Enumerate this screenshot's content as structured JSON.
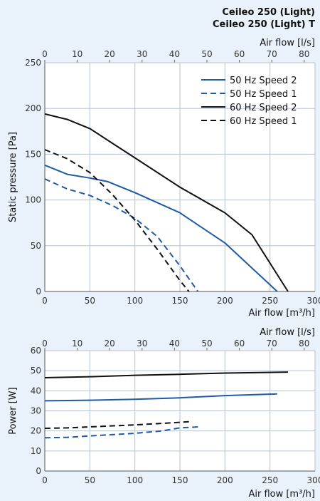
{
  "titles": [
    "Ceileo 250 (Light)",
    "Ceileo 250 (Light) T"
  ],
  "colors": {
    "blue": "#1f5aa6",
    "black": "#111111",
    "grid": "#b8c2cc",
    "plot_bg": "#ffffff"
  },
  "chart_data": [
    {
      "type": "line",
      "title": "",
      "xlabel": "Air flow [m³/h]",
      "x2label": "Air flow [l/s]",
      "ylabel": "Static pressure [Pa]",
      "xlim": [
        0,
        300
      ],
      "x2lim": [
        0,
        83.333
      ],
      "ylim": [
        0,
        250
      ],
      "xticks": [
        "0",
        "50",
        "100",
        "150",
        "200",
        "250",
        "300"
      ],
      "x2ticks": [
        "0",
        "10",
        "20",
        "30",
        "40",
        "50",
        "60",
        "70",
        "80"
      ],
      "yticks": [
        "0",
        "50",
        "100",
        "150",
        "200",
        "250"
      ],
      "grid": true,
      "legend_position": "top-right",
      "series": [
        {
          "name": "50 Hz Speed 2",
          "color": "blue",
          "dash": "solid",
          "x": [
            0,
            25,
            50,
            70,
            100,
            150,
            200,
            258
          ],
          "y": [
            138,
            128,
            124,
            120,
            108,
            86,
            53,
            0
          ]
        },
        {
          "name": "50 Hz Speed 1",
          "color": "blue",
          "dash": "dashed",
          "x": [
            0,
            25,
            50,
            75,
            100,
            125,
            150,
            170
          ],
          "y": [
            123,
            112,
            105,
            94,
            80,
            60,
            28,
            0
          ]
        },
        {
          "name": "60 Hz Speed 2",
          "color": "black",
          "dash": "solid",
          "x": [
            0,
            25,
            50,
            75,
            100,
            150,
            200,
            230,
            270
          ],
          "y": [
            194,
            188,
            178,
            162,
            146,
            114,
            86,
            62,
            0
          ]
        },
        {
          "name": "60 Hz Speed 1",
          "color": "black",
          "dash": "dashed",
          "x": [
            0,
            25,
            50,
            75,
            100,
            125,
            150,
            160
          ],
          "y": [
            155,
            145,
            130,
            106,
            78,
            46,
            12,
            0
          ]
        }
      ]
    },
    {
      "type": "line",
      "title": "",
      "xlabel": "Air flow [m³/h]",
      "x2label": "Air flow [l/s]",
      "ylabel": "Power [W]",
      "xlim": [
        0,
        300
      ],
      "x2lim": [
        0,
        83.333
      ],
      "ylim": [
        0,
        60
      ],
      "xticks": [
        "0",
        "50",
        "100",
        "150",
        "200",
        "250",
        "300"
      ],
      "x2ticks": [
        "0",
        "10",
        "20",
        "30",
        "40",
        "50",
        "60",
        "70",
        "80"
      ],
      "yticks": [
        "0",
        "10",
        "20",
        "30",
        "40",
        "50",
        "60"
      ],
      "grid": true,
      "series": [
        {
          "name": "60 Hz Speed 2",
          "color": "black",
          "dash": "solid",
          "x": [
            0,
            50,
            100,
            150,
            200,
            270
          ],
          "y": [
            46.5,
            47,
            47.7,
            48.2,
            48.8,
            49.3
          ]
        },
        {
          "name": "50 Hz Speed 2",
          "color": "blue",
          "dash": "solid",
          "x": [
            0,
            50,
            100,
            150,
            200,
            258
          ],
          "y": [
            35,
            35.3,
            35.8,
            36.5,
            37.6,
            38.4
          ]
        },
        {
          "name": "60 Hz Speed 1",
          "color": "black",
          "dash": "dashed",
          "x": [
            0,
            25,
            50,
            100,
            140,
            160
          ],
          "y": [
            21.3,
            21.5,
            22,
            23,
            24,
            24.6
          ]
        },
        {
          "name": "50 Hz Speed 1",
          "color": "blue",
          "dash": "dashed",
          "x": [
            0,
            25,
            50,
            100,
            130,
            150,
            170
          ],
          "y": [
            16.6,
            16.8,
            17.5,
            18.8,
            20,
            21.5,
            22
          ]
        }
      ]
    }
  ]
}
